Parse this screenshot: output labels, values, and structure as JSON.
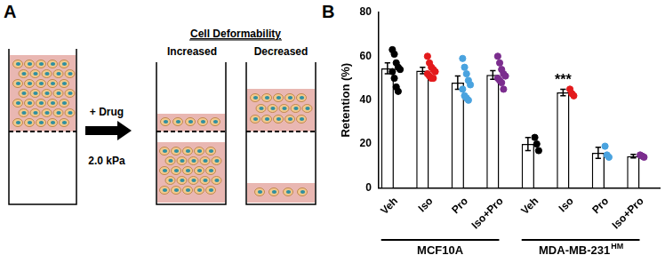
{
  "diagram": {
    "panel": "A",
    "treatment": "+ Drug",
    "stiffness": "2.0 kPa",
    "header": "Cell Deformability",
    "columns": [
      "Increased",
      "Decreased"
    ]
  },
  "chart_data": {
    "panel": "B",
    "type": "bar",
    "y_label": "Retention (%)",
    "categories": [
      "Veh",
      "Iso",
      "Pro",
      "Iso+Pro",
      "Veh",
      "Iso",
      "Pro",
      "Iso+Pro"
    ],
    "groups": [
      {
        "name": "MCF10A",
        "categories": [
          "Veh",
          "Iso",
          "Pro",
          "Iso+Pro"
        ]
      },
      {
        "name": "MDA-MB-231",
        "superscript": "HM",
        "categories": [
          "Veh",
          "Iso",
          "Pro",
          "Iso+Pro"
        ]
      }
    ],
    "values": [
      54.5,
      53.5,
      48,
      51.5,
      20,
      43.5,
      16,
      14.5
    ],
    "error": [
      2.5,
      1.5,
      3,
      2,
      3,
      1.5,
      2.5,
      0.8
    ],
    "points": [
      [
        63,
        61,
        57,
        55,
        54,
        53,
        50,
        46,
        44
      ],
      [
        60,
        57,
        55,
        54,
        53,
        52,
        51,
        50,
        50
      ],
      [
        59,
        55,
        52,
        49,
        47,
        45,
        42,
        41,
        40
      ],
      [
        60,
        57,
        54,
        52,
        51,
        50,
        49,
        48,
        45
      ],
      [
        23,
        20,
        17
      ],
      [
        45,
        43,
        42
      ],
      [
        19,
        15,
        14
      ],
      [
        15,
        14.5,
        14
      ]
    ],
    "colors": [
      "#000000",
      "#e31a1c",
      "#4aa3df",
      "#7b2d8e",
      "#000000",
      "#e31a1c",
      "#4aa3df",
      "#7b2d8e"
    ],
    "annotations": [
      {
        "position": 5,
        "text": "***"
      }
    ],
    "ylim": [
      0,
      80
    ],
    "yticks": [
      0,
      20,
      40,
      60,
      80
    ],
    "grid": false
  }
}
